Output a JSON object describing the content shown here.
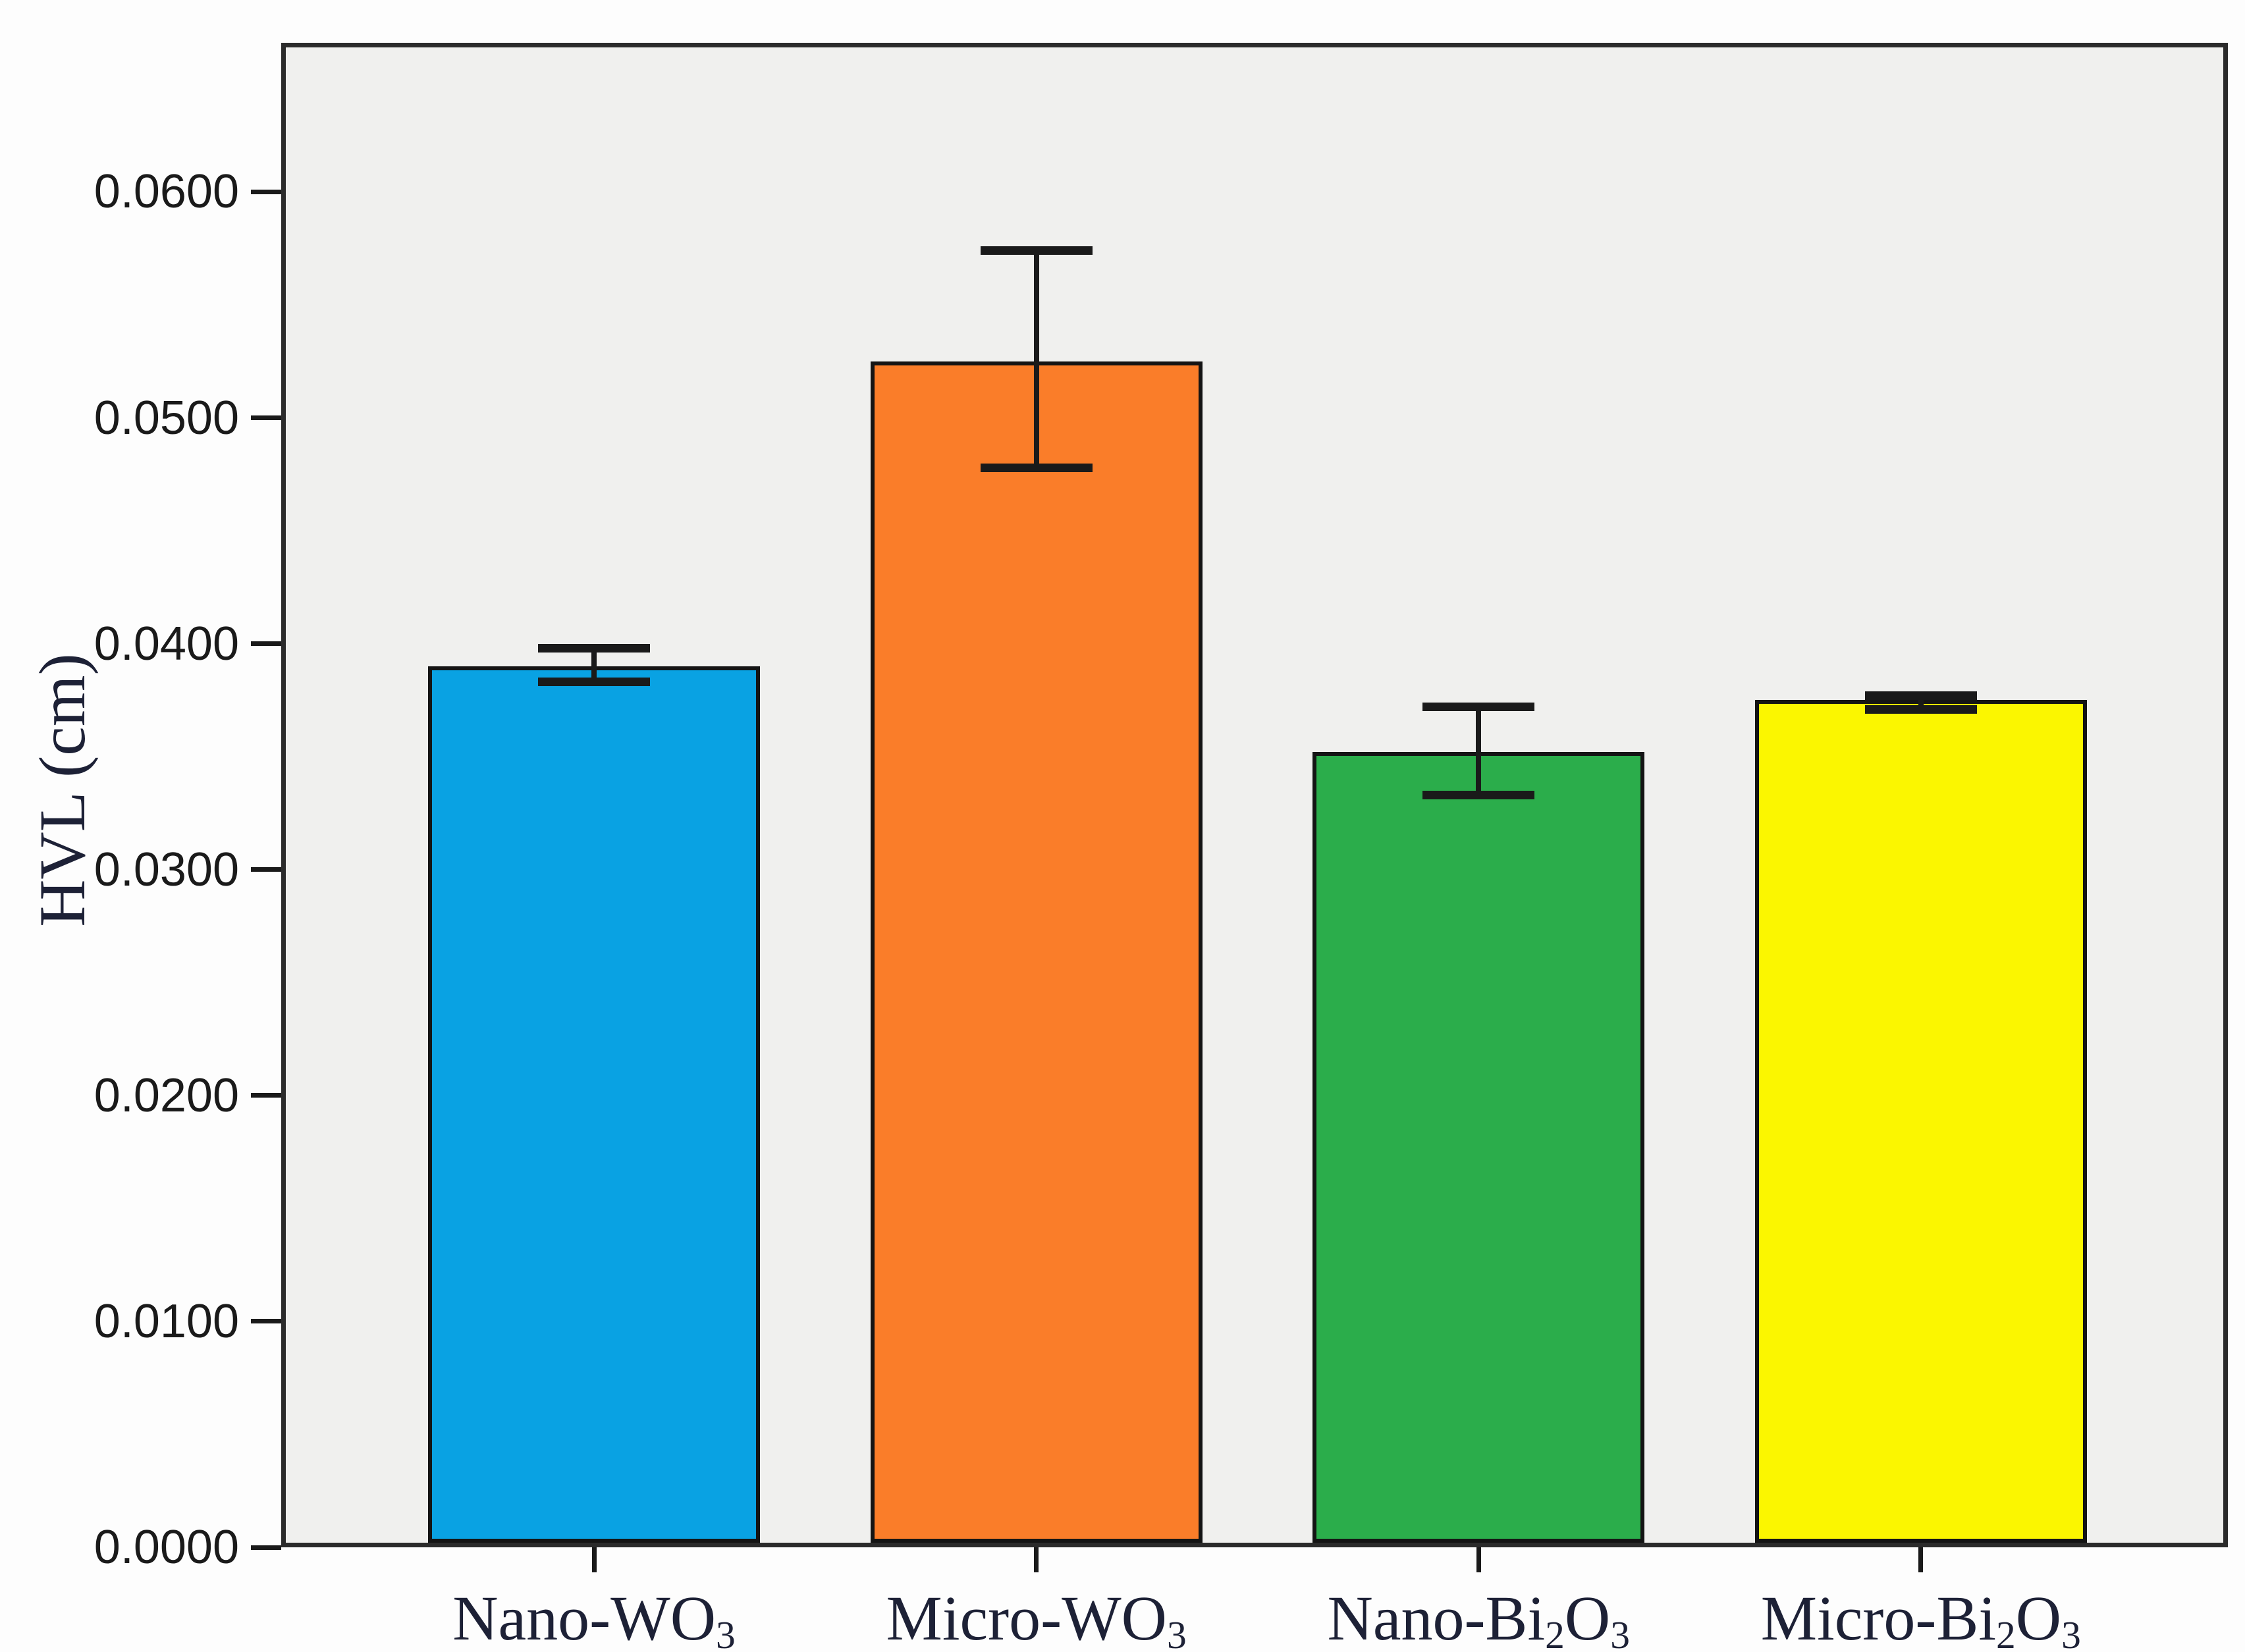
{
  "chart_data": {
    "type": "bar",
    "title": "",
    "xlabel": "",
    "ylabel": "HVL (cm)",
    "ylim": [
      0,
      0.0666
    ],
    "grid": false,
    "legend": null,
    "colors": {
      "plot_background": "#f0f0ee",
      "page_background": "#fdfdfd",
      "frame": "#2b2b2b",
      "bar_edge": "#141414",
      "error_bar": "#1a1a1a",
      "tick_text": "#1a1a1a",
      "label_text": "#1d2136"
    },
    "yticks": [
      {
        "value": 0.0,
        "label": "0.0000"
      },
      {
        "value": 0.01,
        "label": "0.0100"
      },
      {
        "value": 0.02,
        "label": "0.0200"
      },
      {
        "value": 0.03,
        "label": "0.0300"
      },
      {
        "value": 0.04,
        "label": "0.0400"
      },
      {
        "value": 0.05,
        "label": "0.0500"
      },
      {
        "value": 0.06,
        "label": "0.0600"
      }
    ],
    "categories": [
      {
        "id": "nano-wo3",
        "name": "Nano-WO₃",
        "parts": [
          {
            "t": "Nano-WO"
          },
          {
            "t": "3",
            "sub": true
          }
        ],
        "value": 0.039,
        "err_low": 0.0383,
        "err_high": 0.0398,
        "color": "#09a2e3"
      },
      {
        "id": "micro-wo3",
        "name": "Micro-WO₃",
        "parts": [
          {
            "t": "Micro-WO"
          },
          {
            "t": "3",
            "sub": true
          }
        ],
        "value": 0.0525,
        "err_low": 0.0478,
        "err_high": 0.0574,
        "color": "#fa7d29"
      },
      {
        "id": "nano-bi2o3",
        "name": "Nano-Bi₂O₃",
        "parts": [
          {
            "t": "Nano-Bi"
          },
          {
            "t": "2",
            "sub": true
          },
          {
            "t": "O"
          },
          {
            "t": "3",
            "sub": true
          }
        ],
        "value": 0.0352,
        "err_low": 0.0333,
        "err_high": 0.0372,
        "color": "#2bad4b"
      },
      {
        "id": "micro-bi2o3",
        "name": "Micro-Bi₂O₃",
        "parts": [
          {
            "t": "Micro-Bi"
          },
          {
            "t": "2",
            "sub": true
          },
          {
            "t": "O"
          },
          {
            "t": "3",
            "sub": true
          }
        ],
        "value": 0.0375,
        "err_low": 0.0371,
        "err_high": 0.0377,
        "color": "#fbf600"
      }
    ]
  }
}
